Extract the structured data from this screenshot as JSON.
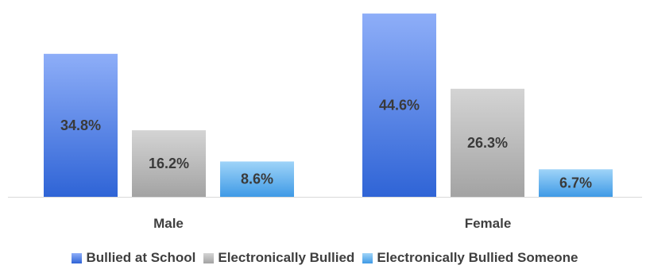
{
  "chart_data": {
    "type": "bar",
    "categories": [
      "Male",
      "Female"
    ],
    "series": [
      {
        "name": "Bullied at School",
        "values": [
          34.8,
          44.6
        ],
        "labels": [
          "34.8%",
          "44.6%"
        ],
        "color_top": "#8eaef8",
        "color_bottom": "#2f64d6"
      },
      {
        "name": "Electronically Bullied",
        "values": [
          16.2,
          26.3
        ],
        "labels": [
          "16.2%",
          "26.3%"
        ],
        "color_top": "#d4d4d4",
        "color_bottom": "#a3a3a3"
      },
      {
        "name": "Electronically Bullied Someone",
        "values": [
          8.6,
          6.7
        ],
        "labels": [
          "8.6%",
          "6.7%"
        ],
        "color_top": "#9fd4f8",
        "color_bottom": "#3f9ae6"
      }
    ],
    "ylim": [
      0,
      45
    ],
    "grid": false,
    "legend_position": "bottom",
    "label_color": "#3a3a3a",
    "axis_color": "#d9d9d9"
  }
}
